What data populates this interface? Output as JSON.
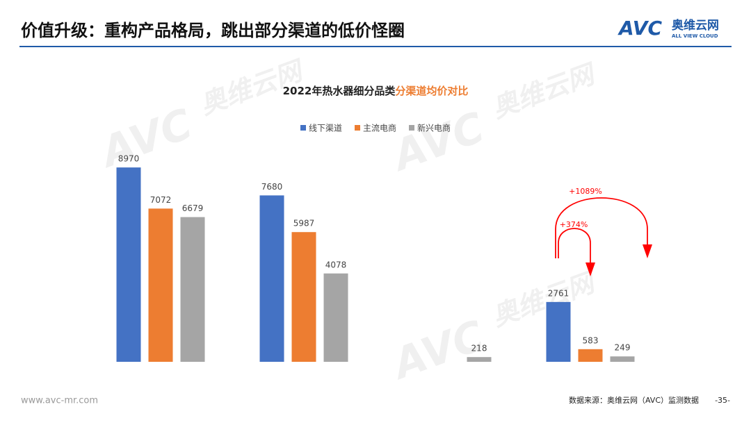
{
  "header": {
    "title": "价值升级：重构产品格局，跳出部分渠道的低价怪圈"
  },
  "logo": {
    "brand": "AVC",
    "name": "奥维云网",
    "sub": "ALL VIEW CLOUD"
  },
  "chart_data": {
    "type": "bar",
    "title": "2022年热水器细分品类",
    "title_highlight": "分渠道均价对比",
    "title_highlight_color": "#ed7d31",
    "categories": [
      null,
      null,
      null,
      null
    ],
    "series": [
      {
        "name": "线下渠道",
        "color": "#4472c4",
        "values": [
          8970,
          7680,
          null,
          2761
        ]
      },
      {
        "name": "主流电商",
        "color": "#ed7d31",
        "values": [
          7072,
          5987,
          null,
          583
        ]
      },
      {
        "name": "新兴电商",
        "color": "#a5a5a5",
        "values": [
          6679,
          4078,
          218,
          249
        ]
      }
    ],
    "ylim": [
      0,
      10000
    ],
    "legend": "top",
    "annotations": [
      "+1089%",
      "+374%"
    ],
    "annotation_color": "#ff0000"
  },
  "footer": {
    "url": "www.avc-mr.com",
    "source": "数据来源：奥维云网（AVC）监测数据",
    "page": "-35-"
  }
}
